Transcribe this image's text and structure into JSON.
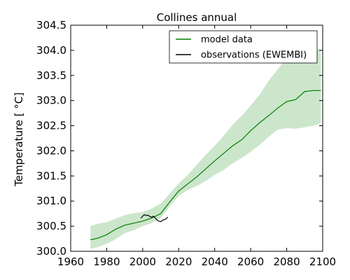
{
  "chart_data": {
    "type": "line",
    "title": "Collines annual",
    "xlabel": "",
    "ylabel": "Temperature [ °C]",
    "xlim": [
      1960,
      2100
    ],
    "ylim": [
      300.0,
      304.5
    ],
    "xticks": [
      1960,
      1980,
      2000,
      2020,
      2040,
      2060,
      2080,
      2100
    ],
    "xtick_labels": [
      "1960",
      "1980",
      "2000",
      "2020",
      "2040",
      "2060",
      "2080",
      "2100"
    ],
    "yticks": [
      300.0,
      300.5,
      301.0,
      301.5,
      302.0,
      302.5,
      303.0,
      303.5,
      304.0,
      304.5
    ],
    "ytick_labels": [
      "300.0",
      "300.5",
      "301.0",
      "301.5",
      "302.0",
      "302.5",
      "303.0",
      "303.5",
      "304.0",
      "304.5"
    ],
    "grid": false,
    "legend_position": "top-right",
    "series": [
      {
        "name": "model data",
        "color": "#008000",
        "x": [
          1971,
          1975,
          1980,
          1985,
          1990,
          1995,
          2000,
          2005,
          2010,
          2015,
          2020,
          2025,
          2030,
          2035,
          2040,
          2045,
          2050,
          2055,
          2060,
          2065,
          2070,
          2075,
          2080,
          2085,
          2090,
          2095,
          2099
        ],
        "values": [
          300.23,
          300.26,
          300.33,
          300.44,
          300.52,
          300.56,
          300.6,
          300.66,
          300.75,
          300.98,
          301.2,
          301.34,
          301.48,
          301.64,
          301.8,
          301.95,
          302.1,
          302.22,
          302.4,
          302.56,
          302.7,
          302.85,
          302.98,
          303.02,
          303.18,
          303.2,
          303.2
        ],
        "band_lower": [
          300.05,
          300.08,
          300.15,
          300.24,
          300.36,
          300.42,
          300.5,
          300.56,
          300.66,
          300.9,
          301.1,
          301.22,
          301.3,
          301.4,
          301.52,
          301.62,
          301.75,
          301.86,
          301.98,
          302.12,
          302.28,
          302.42,
          302.45,
          302.44,
          302.47,
          302.5,
          302.55
        ],
        "band_upper": [
          300.5,
          300.55,
          300.58,
          300.65,
          300.72,
          300.76,
          300.78,
          300.85,
          300.95,
          301.15,
          301.35,
          301.52,
          301.72,
          301.92,
          302.1,
          302.3,
          302.52,
          302.7,
          302.9,
          303.12,
          303.4,
          303.62,
          303.85,
          303.98,
          304.02,
          304.02,
          304.02
        ]
      },
      {
        "name": "observations (EWEMBI)",
        "color": "#000000",
        "x": [
          1999,
          2000,
          2001,
          2002,
          2003,
          2004,
          2005,
          2006,
          2007,
          2008,
          2009,
          2010,
          2011,
          2012,
          2013,
          2014
        ],
        "values": [
          300.66,
          300.7,
          300.73,
          300.71,
          300.72,
          300.69,
          300.68,
          300.7,
          300.66,
          300.62,
          300.6,
          300.59,
          300.62,
          300.63,
          300.65,
          300.68
        ]
      }
    ]
  }
}
